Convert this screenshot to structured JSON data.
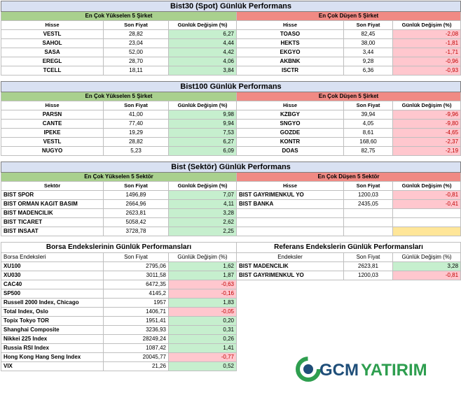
{
  "bist30": {
    "title": "Bist30 (Spot) Günlük Performans",
    "up_title": "En Çok Yükselen 5 Şirket",
    "down_title": "En Çok Düşen 5 Şirket",
    "headers": [
      "Hisse",
      "Son Fiyat",
      "Günlük Değişim (%)"
    ],
    "up": [
      [
        "VESTL",
        "28,82",
        "6,27"
      ],
      [
        "SAHOL",
        "23,04",
        "4,44"
      ],
      [
        "SASA",
        "52,00",
        "4,42"
      ],
      [
        "EREGL",
        "28,70",
        "4,06"
      ],
      [
        "TCELL",
        "18,11",
        "3,84"
      ]
    ],
    "down": [
      [
        "TOASO",
        "82,45",
        "-2,08"
      ],
      [
        "HEKTS",
        "38,00",
        "-1,81"
      ],
      [
        "EKGYO",
        "3,44",
        "-1,71"
      ],
      [
        "AKBNK",
        "9,28",
        "-0,96"
      ],
      [
        "ISCTR",
        "6,36",
        "-0,93"
      ]
    ]
  },
  "bist100": {
    "title": "Bist100 Günlük Performans",
    "up_title": "En Çok Yükselen 5 Şirket",
    "down_title": "En Çok Düşen 5 Şirket",
    "headers": [
      "Hisse",
      "Son Fiyat",
      "Günlük Değişim (%)"
    ],
    "up": [
      [
        "PARSN",
        "41,00",
        "9,98"
      ],
      [
        "CANTE",
        "77,40",
        "9,94"
      ],
      [
        "IPEKE",
        "19,29",
        "7,53"
      ],
      [
        "VESTL",
        "28,82",
        "6,27"
      ],
      [
        "NUGYO",
        "5,23",
        "6,09"
      ]
    ],
    "down": [
      [
        "KZBGY",
        "39,94",
        "-9,96"
      ],
      [
        "SNGYO",
        "4,05",
        "-9,80"
      ],
      [
        "GOZDE",
        "8,61",
        "-4,65"
      ],
      [
        "KONTR",
        "168,60",
        "-2,37"
      ],
      [
        "DOAS",
        "82,75",
        "-2,19"
      ]
    ]
  },
  "sektor": {
    "title": "Bist (Sektör) Günlük Performans",
    "up_title": "En Çok Yükselen 5 Sektör",
    "down_title": "En Çok Düşen 5 Sektör",
    "up_headers": [
      "Sektör",
      "Son Fiyat",
      "Günlük Değişim (%)"
    ],
    "down_headers": [
      "Hisse",
      "Son Fiyat",
      "Günlük Değişim (%)"
    ],
    "up": [
      [
        "BIST SPOR",
        "1496,89",
        "7,07"
      ],
      [
        "BIST ORMAN KAGIT BASIM",
        "2664,96",
        "4,11"
      ],
      [
        "BIST MADENCILIK",
        "2623,81",
        "3,28"
      ],
      [
        "BIST TICARET",
        "5058,42",
        "2,62"
      ],
      [
        "BIST INSAAT",
        "3728,78",
        "2,25"
      ]
    ],
    "down": [
      [
        "BIST GAYRIMENKUL YO",
        "1200,03",
        "-0,81"
      ],
      [
        "BIST BANKA",
        "2435,05",
        "-0,41"
      ],
      [
        "",
        "",
        ""
      ],
      [
        "",
        "",
        ""
      ],
      [
        "",
        "",
        ""
      ]
    ]
  },
  "borsa": {
    "title": "Borsa Endekslerinin Günlük Performansları",
    "headers": [
      "Borsa Endeksleri",
      "Son Fiyat",
      "Günlük Değişim (%)"
    ],
    "rows": [
      [
        "XU100",
        "2795,06",
        "1,62"
      ],
      [
        "XU030",
        "3011,58",
        "1,87"
      ],
      [
        "CAC40",
        "6472,35",
        "-0,63"
      ],
      [
        "SP500",
        "4145,2",
        "-0,16"
      ],
      [
        "Russell 2000 Index, Chicago",
        "1957",
        "1,83"
      ],
      [
        "Total Index, Oslo",
        "1406,71",
        "-0,05"
      ],
      [
        "Topix Tokyo TOR",
        "1951,41",
        "0,20"
      ],
      [
        "Shanghai Composite",
        "3236,93",
        "0,31"
      ],
      [
        "Nikkei 225 Index",
        "28249,24",
        "0,26"
      ],
      [
        "Russia RSI Index",
        "1087,42",
        "1,41"
      ],
      [
        "Hong Kong Hang Seng Index",
        "20045,77",
        "-0,77"
      ],
      [
        "VIX",
        "21,26",
        "0,52"
      ]
    ]
  },
  "referans": {
    "title": "Referans Endekslerin  Günlük Performansları",
    "headers": [
      "Endeksler",
      "Son Fiyat",
      "Günlük Değişim (%)"
    ],
    "rows": [
      [
        "BIST MADENCILIK",
        "2623,81",
        "3,28"
      ],
      [
        "BIST GAYRIMENKUL YO",
        "1200,03",
        "-0,81"
      ]
    ]
  },
  "logo": {
    "text_a": "GCM",
    "text_b": "YATIRIM",
    "color_a": "#1f4e79",
    "color_b": "#2e9e4f"
  },
  "colors": {
    "up": "#a9d08e",
    "down": "#f08a84",
    "pos": "#c6efce",
    "neg": "#ffc7ce",
    "title_bg": "#d9e1f2"
  }
}
